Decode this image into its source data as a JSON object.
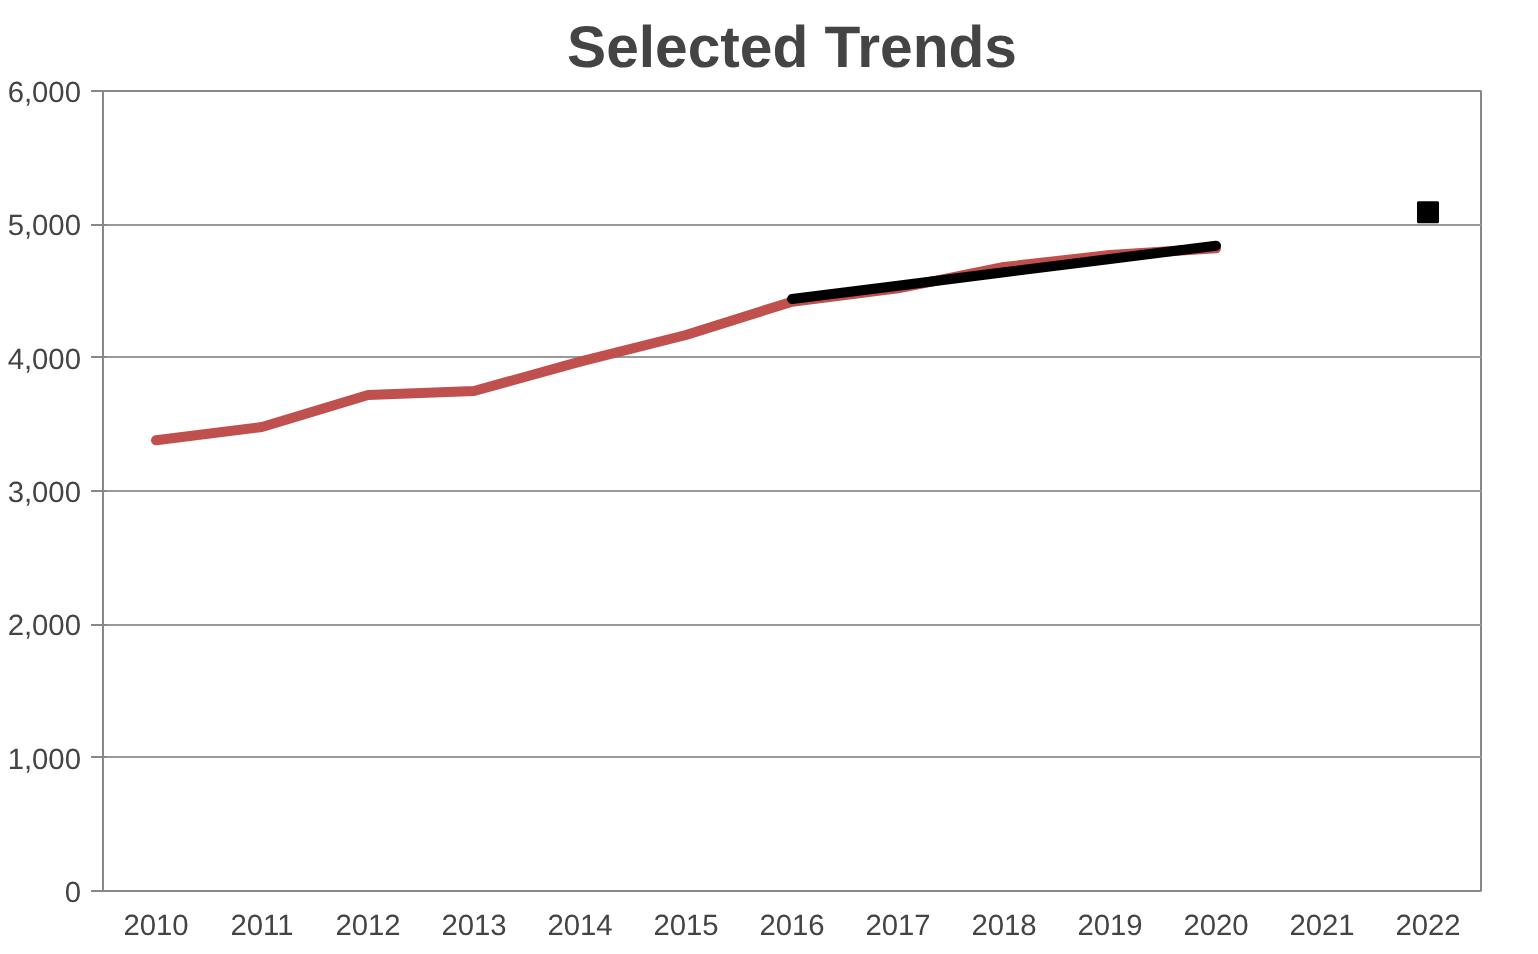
{
  "chart_data": {
    "type": "line",
    "title": "Selected Trends",
    "categories": [
      "2010",
      "2011",
      "2012",
      "2013",
      "2014",
      "2015",
      "2016",
      "2017",
      "2018",
      "2019",
      "2020",
      "2021",
      "2022"
    ],
    "series": [
      {
        "color": "#c0504d",
        "values": [
          3380,
          3480,
          3720,
          3750,
          3970,
          4170,
          4420,
          4520,
          4680,
          4770,
          4820,
          null,
          null
        ]
      },
      {
        "color": "#000000",
        "values": [
          null,
          null,
          null,
          null,
          null,
          null,
          4440,
          4540,
          4640,
          4740,
          4840,
          null,
          null
        ]
      },
      {
        "type": "scatter",
        "marker": "square",
        "color": "#000000",
        "values": [
          null,
          null,
          null,
          null,
          null,
          null,
          null,
          null,
          null,
          null,
          null,
          null,
          5090
        ]
      }
    ],
    "ylim": [
      0,
      6000
    ],
    "yticks": [
      {
        "value": 0,
        "label": "0"
      },
      {
        "value": 1000,
        "label": "1,000"
      },
      {
        "value": 2000,
        "label": "2,000"
      },
      {
        "value": 3000,
        "label": "3,000"
      },
      {
        "value": 4000,
        "label": "4,000"
      },
      {
        "value": 5000,
        "label": "5,000"
      },
      {
        "value": 6000,
        "label": "6,000"
      }
    ],
    "grid": "y"
  }
}
